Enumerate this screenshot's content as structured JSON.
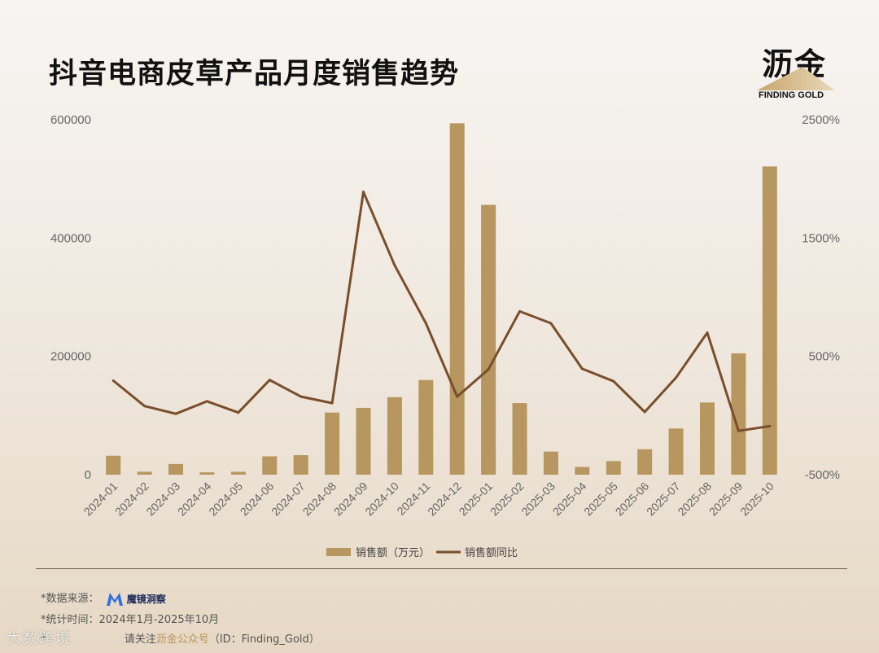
{
  "title": "抖音电商皮草产品月度销售趋势",
  "logo": {
    "cn": "沥金",
    "en": "FINDING GOLD"
  },
  "chart_data": {
    "type": "bar+line",
    "categories": [
      "2024-01",
      "2024-02",
      "2024-03",
      "2024-04",
      "2024-05",
      "2024-06",
      "2024-07",
      "2024-08",
      "2024-09",
      "2024-10",
      "2024-11",
      "2024-12",
      "2025-01",
      "2025-02",
      "2025-03",
      "2025-04",
      "2025-05",
      "2025-06",
      "2025-07",
      "2025-08",
      "2025-09",
      "2025-10"
    ],
    "series": [
      {
        "name": "销售额（万元）",
        "kind": "bar",
        "axis": "left",
        "values": [
          32000,
          5000,
          18000,
          4000,
          5000,
          31000,
          33000,
          105000,
          113000,
          131000,
          160000,
          594000,
          456000,
          121000,
          39000,
          13000,
          23000,
          43000,
          78000,
          122000,
          205000,
          521000
        ]
      },
      {
        "name": "销售额同比",
        "kind": "line",
        "axis": "right",
        "values": [
          295,
          80,
          15,
          120,
          25,
          300,
          160,
          105,
          1890,
          1270,
          780,
          160,
          390,
          880,
          780,
          395,
          290,
          30,
          320,
          700,
          -130,
          -90
        ]
      }
    ],
    "left_axis": {
      "ylim": [
        0,
        600000
      ],
      "ticks": [
        "0",
        "200000",
        "400000",
        "600000"
      ]
    },
    "right_axis": {
      "ylim": [
        -500,
        2500
      ],
      "ticks": [
        "-500%",
        "500%",
        "1500%",
        "2500%"
      ]
    },
    "grid": false,
    "legend_position": "bottom"
  },
  "colors": {
    "bar": "#b8965f",
    "line": "#7a4e2a",
    "axis_text": "#666666",
    "accent": "#b8925e"
  },
  "footer": {
    "source_label": "*数据来源：",
    "source_name": "魔镜洞察",
    "time": "*统计时间：2024年1月-2025年10月",
    "follow_prefix": "请关注",
    "follow_account": "沥金公众号",
    "follow_id": "（ID：Finding_Gold）",
    "star": "*"
  },
  "watermark": "大数跨境"
}
